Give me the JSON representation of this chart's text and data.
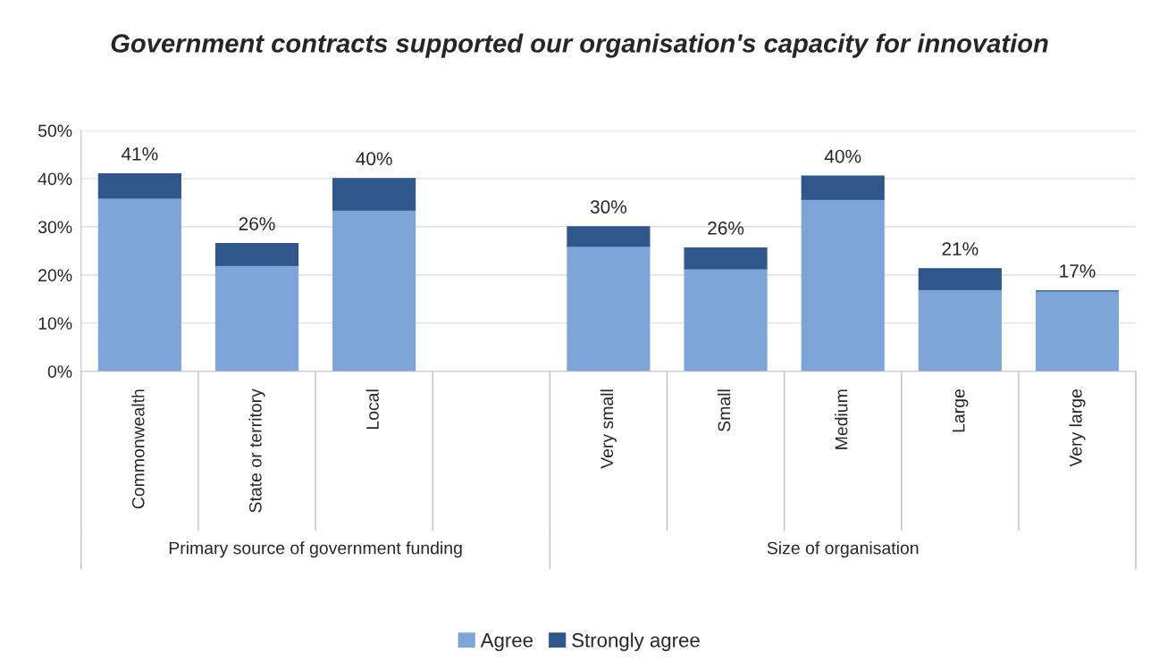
{
  "chart_data": {
    "type": "bar",
    "title": "Government contracts supported our organisation's capacity for innovation",
    "categories": [
      "Commonwealth",
      "State or territory",
      "Local",
      null,
      "Very small",
      "Small",
      "Medium",
      "Large",
      "Very large"
    ],
    "series": [
      {
        "name": "Agree",
        "color": "#7ea5d8",
        "values": [
          36,
          22,
          33.5,
          null,
          26,
          21.3,
          35.7,
          17,
          16.7
        ]
      },
      {
        "name": "Strongly agree",
        "color": "#2f578c",
        "values": [
          5,
          4.5,
          6.5,
          null,
          4,
          4.3,
          4.8,
          4.3,
          0
        ]
      }
    ],
    "stacked": true,
    "totals": [
      "41%",
      "26%",
      "40%",
      null,
      "30%",
      "26%",
      "40%",
      "21%",
      "17%"
    ],
    "annotations": [
      "Primary source of government funding",
      "Size of organisation"
    ],
    "ylim": [
      0,
      50
    ],
    "yticks": [
      {
        "value": 0,
        "label": "0%"
      },
      {
        "value": 10,
        "label": "10%"
      },
      {
        "value": 20,
        "label": "20%"
      },
      {
        "value": 30,
        "label": "30%"
      },
      {
        "value": 40,
        "label": "40%"
      },
      {
        "value": 50,
        "label": "50%"
      }
    ],
    "grid": "y",
    "legend": "bottom"
  }
}
